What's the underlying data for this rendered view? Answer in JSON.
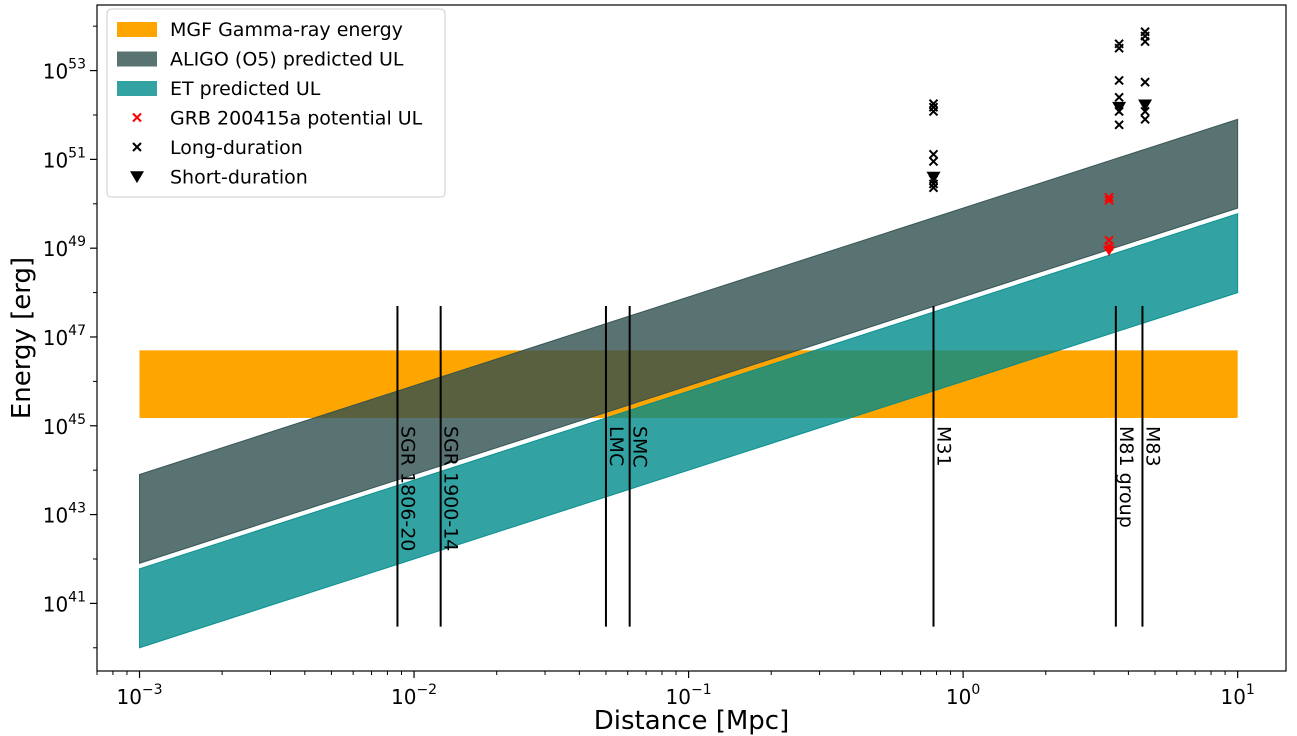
{
  "chart_data": {
    "type": "area",
    "xlabel": "Distance [Mpc]",
    "ylabel": "Energy [erg]",
    "xscale": "log",
    "yscale": "log",
    "xlim": [
      0.0007,
      15
    ],
    "ylim": [
      3e+39,
      3e+54
    ],
    "xticks": [
      {
        "value": 0.001,
        "base": "10",
        "exp": "−3"
      },
      {
        "value": 0.01,
        "base": "10",
        "exp": "−2"
      },
      {
        "value": 0.1,
        "base": "10",
        "exp": "−1"
      },
      {
        "value": 1,
        "base": "10",
        "exp": "0"
      },
      {
        "value": 10,
        "base": "10",
        "exp": "1"
      }
    ],
    "yticks": [
      {
        "value": 1e+41,
        "base": "10",
        "exp": "41"
      },
      {
        "value": 1e+43,
        "base": "10",
        "exp": "43"
      },
      {
        "value": 1e+45,
        "base": "10",
        "exp": "45"
      },
      {
        "value": 1e+47,
        "base": "10",
        "exp": "47"
      },
      {
        "value": 1e+49,
        "base": "10",
        "exp": "49"
      },
      {
        "value": 1e+51,
        "base": "10",
        "exp": "51"
      },
      {
        "value": 1e+53,
        "base": "10",
        "exp": "53"
      }
    ],
    "grid": false,
    "legend_position": "top-left",
    "colors": {
      "mgf": "#ffa500",
      "aligo": "#2f4f4f",
      "et": "#008b8b",
      "grb": "#ff0000",
      "events": "#000000"
    },
    "series": [
      {
        "name": "MGF Gamma-ray energy",
        "kind": "hband",
        "x": [
          0.001,
          10
        ],
        "y_low": 1.5e+45,
        "y_high": 5e+46
      },
      {
        "name": "ALIGO (O5) predicted UL",
        "kind": "band",
        "x": [
          0.001,
          10
        ],
        "y_low": [
          8e+41,
          8e+49
        ],
        "y_high": [
          8e+43,
          8e+51
        ]
      },
      {
        "name": "ET predicted UL",
        "kind": "band",
        "x": [
          0.001,
          10
        ],
        "y_low": [
          1e+40,
          1e+48
        ],
        "y_high": [
          6e+41,
          6e+49
        ]
      },
      {
        "name": "GRB 200415a potential UL",
        "marker": "x",
        "points": [
          [
            3.4,
            1.2e+50
          ],
          [
            3.4,
            1.4e+50
          ],
          [
            3.4,
            1.5e+49
          ],
          [
            3.4,
            1.1e+49
          ]
        ]
      },
      {
        "name": "Long-duration",
        "marker": "x",
        "points": [
          [
            0.78,
            1.8e+52
          ],
          [
            0.78,
            1.5e+52
          ],
          [
            0.78,
            1.2e+52
          ],
          [
            0.78,
            1.3e+51
          ],
          [
            0.78,
            9e+50
          ],
          [
            0.78,
            3.5e+50
          ],
          [
            0.78,
            2.8e+50
          ],
          [
            0.78,
            2.3e+50
          ],
          [
            3.7,
            4e+53
          ],
          [
            3.7,
            3.2e+53
          ],
          [
            3.7,
            6e+52
          ],
          [
            3.7,
            2.5e+52
          ],
          [
            3.7,
            1.2e+52
          ],
          [
            3.7,
            6e+51
          ],
          [
            4.6,
            7.5e+53
          ],
          [
            4.6,
            6e+53
          ],
          [
            4.6,
            4.5e+53
          ],
          [
            4.6,
            5.5e+52
          ],
          [
            4.6,
            1.2e+52
          ],
          [
            4.6,
            8e+51
          ]
        ]
      },
      {
        "name": "Short-duration",
        "marker": "v",
        "points": [
          [
            0.78,
            4e+50
          ],
          [
            3.7,
            1.5e+52
          ],
          [
            4.6,
            1.7e+52
          ]
        ]
      }
    ],
    "reference_lines": [
      {
        "label": "SGR 1806-20",
        "x": 0.0087,
        "label_side": "right"
      },
      {
        "label": "SGR 1900-14",
        "x": 0.0125,
        "label_side": "right"
      },
      {
        "label": "LMC",
        "x": 0.05,
        "label_side": "right"
      },
      {
        "label": "SMC",
        "x": 0.061,
        "label_side": "right"
      },
      {
        "label": "M31",
        "x": 0.78,
        "label_side": "right"
      },
      {
        "label": "M81 group",
        "x": 3.6,
        "label_side": "right"
      },
      {
        "label": "M83",
        "x": 4.5,
        "label_side": "right"
      }
    ],
    "reference_line_range": [
      3e+40,
      5e+47
    ]
  }
}
